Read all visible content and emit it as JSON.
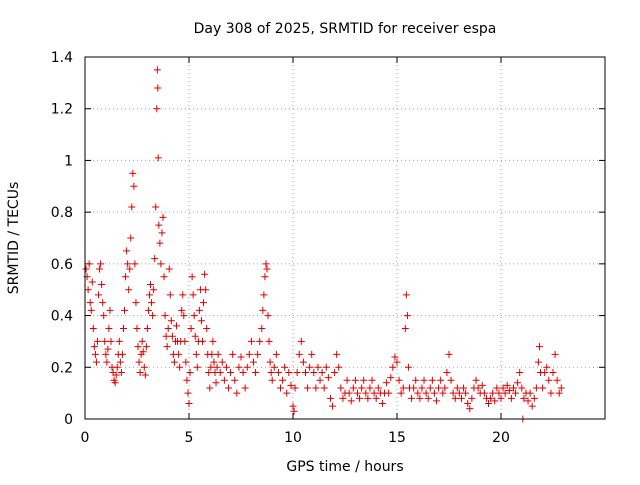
{
  "chart_data": {
    "type": "scatter",
    "title": "Day 308 of 2025, SRMTID for receiver espa",
    "xlabel": "GPS time / hours",
    "ylabel": "SRMTID / TECUs",
    "xlim": [
      0,
      25
    ],
    "ylim": [
      0,
      1.4
    ],
    "xticks": [
      0,
      5,
      10,
      15,
      20
    ],
    "yticks": [
      0,
      0.2,
      0.4,
      0.6,
      0.8,
      1.0,
      1.2,
      1.4
    ],
    "xtick_labels": [
      "0",
      "5",
      "10",
      "15",
      "20"
    ],
    "ytick_labels": [
      "0",
      "0.2",
      "0.4",
      "0.6",
      "0.8",
      "1",
      "1.2",
      "1.4"
    ],
    "grid": true,
    "marker": "+",
    "color": "#e00000",
    "series": [
      {
        "name": "SRMTID",
        "points": [
          [
            0.05,
            0.58
          ],
          [
            0.1,
            0.55
          ],
          [
            0.15,
            0.5
          ],
          [
            0.2,
            0.6
          ],
          [
            0.25,
            0.45
          ],
          [
            0.3,
            0.42
          ],
          [
            0.35,
            0.53
          ],
          [
            0.4,
            0.35
          ],
          [
            0.45,
            0.28
          ],
          [
            0.5,
            0.25
          ],
          [
            0.55,
            0.22
          ],
          [
            0.6,
            0.3
          ],
          [
            0.65,
            0.48
          ],
          [
            0.7,
            0.58
          ],
          [
            0.75,
            0.6
          ],
          [
            0.8,
            0.52
          ],
          [
            0.85,
            0.45
          ],
          [
            0.9,
            0.4
          ],
          [
            0.95,
            0.3
          ],
          [
            1.0,
            0.25
          ],
          [
            1.05,
            0.22
          ],
          [
            1.1,
            0.27
          ],
          [
            1.15,
            0.35
          ],
          [
            1.2,
            0.42
          ],
          [
            1.25,
            0.3
          ],
          [
            1.3,
            0.2
          ],
          [
            1.35,
            0.18
          ],
          [
            1.4,
            0.15
          ],
          [
            1.45,
            0.14
          ],
          [
            1.5,
            0.17
          ],
          [
            1.55,
            0.2
          ],
          [
            1.6,
            0.25
          ],
          [
            1.65,
            0.3
          ],
          [
            1.7,
            0.22
          ],
          [
            1.75,
            0.18
          ],
          [
            1.8,
            0.25
          ],
          [
            1.85,
            0.35
          ],
          [
            1.9,
            0.42
          ],
          [
            1.95,
            0.55
          ],
          [
            2.0,
            0.65
          ],
          [
            2.05,
            0.6
          ],
          [
            2.1,
            0.5
          ],
          [
            2.15,
            0.58
          ],
          [
            2.2,
            0.7
          ],
          [
            2.25,
            0.82
          ],
          [
            2.3,
            0.95
          ],
          [
            2.35,
            0.9
          ],
          [
            2.4,
            0.6
          ],
          [
            2.45,
            0.45
          ],
          [
            2.5,
            0.35
          ],
          [
            2.55,
            0.28
          ],
          [
            2.6,
            0.22
          ],
          [
            2.65,
            0.18
          ],
          [
            2.7,
            0.25
          ],
          [
            2.75,
            0.3
          ],
          [
            2.8,
            0.26
          ],
          [
            2.85,
            0.2
          ],
          [
            2.9,
            0.17
          ],
          [
            2.95,
            0.28
          ],
          [
            3.0,
            0.35
          ],
          [
            3.05,
            0.42
          ],
          [
            3.1,
            0.48
          ],
          [
            3.15,
            0.52
          ],
          [
            3.2,
            0.45
          ],
          [
            3.25,
            0.4
          ],
          [
            3.3,
            0.5
          ],
          [
            3.35,
            0.62
          ],
          [
            3.4,
            0.82
          ],
          [
            3.45,
            1.2
          ],
          [
            3.48,
            1.35
          ],
          [
            3.5,
            1.28
          ],
          [
            3.52,
            1.01
          ],
          [
            3.55,
            0.75
          ],
          [
            3.6,
            0.68
          ],
          [
            3.65,
            0.6
          ],
          [
            3.7,
            0.72
          ],
          [
            3.75,
            0.78
          ],
          [
            3.8,
            0.55
          ],
          [
            3.85,
            0.4
          ],
          [
            3.9,
            0.32
          ],
          [
            3.95,
            0.28
          ],
          [
            4.0,
            0.35
          ],
          [
            4.05,
            0.58
          ],
          [
            4.1,
            0.48
          ],
          [
            4.15,
            0.38
          ],
          [
            4.2,
            0.32
          ],
          [
            4.25,
            0.25
          ],
          [
            4.3,
            0.22
          ],
          [
            4.35,
            0.3
          ],
          [
            4.4,
            0.36
          ],
          [
            4.45,
            0.3
          ],
          [
            4.5,
            0.25
          ],
          [
            4.55,
            0.2
          ],
          [
            4.6,
            0.3
          ],
          [
            4.65,
            0.42
          ],
          [
            4.7,
            0.48
          ],
          [
            4.75,
            0.4
          ],
          [
            4.8,
            0.3
          ],
          [
            4.85,
            0.22
          ],
          [
            4.9,
            0.15
          ],
          [
            4.95,
            0.1
          ],
          [
            5.0,
            0.06
          ],
          [
            5.05,
            0.18
          ],
          [
            5.1,
            0.35
          ],
          [
            5.15,
            0.55
          ],
          [
            5.2,
            0.48
          ],
          [
            5.25,
            0.4
          ],
          [
            5.3,
            0.32
          ],
          [
            5.35,
            0.25
          ],
          [
            5.4,
            0.2
          ],
          [
            5.45,
            0.3
          ],
          [
            5.5,
            0.42
          ],
          [
            5.55,
            0.5
          ],
          [
            5.6,
            0.38
          ],
          [
            5.65,
            0.3
          ],
          [
            5.7,
            0.45
          ],
          [
            5.75,
            0.56
          ],
          [
            5.8,
            0.5
          ],
          [
            5.85,
            0.35
          ],
          [
            5.9,
            0.25
          ],
          [
            5.95,
            0.18
          ],
          [
            6.0,
            0.12
          ],
          [
            6.05,
            0.2
          ],
          [
            6.1,
            0.25
          ],
          [
            6.15,
            0.3
          ],
          [
            6.2,
            0.22
          ],
          [
            6.25,
            0.18
          ],
          [
            6.3,
            0.14
          ],
          [
            6.35,
            0.2
          ],
          [
            6.4,
            0.25
          ],
          [
            6.5,
            0.18
          ],
          [
            6.6,
            0.22
          ],
          [
            6.7,
            0.15
          ],
          [
            6.8,
            0.2
          ],
          [
            6.9,
            0.12
          ],
          [
            7.0,
            0.18
          ],
          [
            7.1,
            0.25
          ],
          [
            7.2,
            0.15
          ],
          [
            7.3,
            0.1
          ],
          [
            7.4,
            0.2
          ],
          [
            7.5,
            0.24
          ],
          [
            7.6,
            0.18
          ],
          [
            7.7,
            0.12
          ],
          [
            7.8,
            0.2
          ],
          [
            7.9,
            0.25
          ],
          [
            8.0,
            0.3
          ],
          [
            8.1,
            0.22
          ],
          [
            8.2,
            0.18
          ],
          [
            8.3,
            0.25
          ],
          [
            8.4,
            0.3
          ],
          [
            8.5,
            0.35
          ],
          [
            8.55,
            0.42
          ],
          [
            8.6,
            0.48
          ],
          [
            8.65,
            0.55
          ],
          [
            8.7,
            0.6
          ],
          [
            8.75,
            0.58
          ],
          [
            8.8,
            0.4
          ],
          [
            8.85,
            0.3
          ],
          [
            8.9,
            0.22
          ],
          [
            8.95,
            0.18
          ],
          [
            9.0,
            0.15
          ],
          [
            9.1,
            0.2
          ],
          [
            9.2,
            0.25
          ],
          [
            9.3,
            0.18
          ],
          [
            9.4,
            0.12
          ],
          [
            9.5,
            0.15
          ],
          [
            9.6,
            0.2
          ],
          [
            9.7,
            0.1
          ],
          [
            9.8,
            0.18
          ],
          [
            9.9,
            0.13
          ],
          [
            10.0,
            0.05
          ],
          [
            10.05,
            0.03
          ],
          [
            10.1,
            0.12
          ],
          [
            10.2,
            0.18
          ],
          [
            10.3,
            0.25
          ],
          [
            10.4,
            0.3
          ],
          [
            10.5,
            0.22
          ],
          [
            10.6,
            0.18
          ],
          [
            10.7,
            0.12
          ],
          [
            10.8,
            0.2
          ],
          [
            10.9,
            0.25
          ],
          [
            11.0,
            0.18
          ],
          [
            11.1,
            0.12
          ],
          [
            11.2,
            0.2
          ],
          [
            11.3,
            0.15
          ],
          [
            11.4,
            0.18
          ],
          [
            11.5,
            0.12
          ],
          [
            11.6,
            0.2
          ],
          [
            11.7,
            0.16
          ],
          [
            11.8,
            0.08
          ],
          [
            11.9,
            0.05
          ],
          [
            12.0,
            0.18
          ],
          [
            12.1,
            0.25
          ],
          [
            12.2,
            0.2
          ],
          [
            12.3,
            0.12
          ],
          [
            12.4,
            0.08
          ],
          [
            12.5,
            0.1
          ],
          [
            12.6,
            0.15
          ],
          [
            12.7,
            0.1
          ],
          [
            12.8,
            0.07
          ],
          [
            12.9,
            0.12
          ],
          [
            13.0,
            0.15
          ],
          [
            13.1,
            0.1
          ],
          [
            13.2,
            0.08
          ],
          [
            13.3,
            0.12
          ],
          [
            13.4,
            0.15
          ],
          [
            13.5,
            0.1
          ],
          [
            13.6,
            0.08
          ],
          [
            13.7,
            0.12
          ],
          [
            13.8,
            0.15
          ],
          [
            13.9,
            0.1
          ],
          [
            14.0,
            0.08
          ],
          [
            14.1,
            0.12
          ],
          [
            14.2,
            0.1
          ],
          [
            14.3,
            0.06
          ],
          [
            14.4,
            0.1
          ],
          [
            14.5,
            0.14
          ],
          [
            14.6,
            0.1
          ],
          [
            14.7,
            0.16
          ],
          [
            14.8,
            0.2
          ],
          [
            14.9,
            0.24
          ],
          [
            15.0,
            0.22
          ],
          [
            15.1,
            0.15
          ],
          [
            15.2,
            0.1
          ],
          [
            15.3,
            0.12
          ],
          [
            15.4,
            0.35
          ],
          [
            15.45,
            0.48
          ],
          [
            15.5,
            0.4
          ],
          [
            15.55,
            0.2
          ],
          [
            15.6,
            0.12
          ],
          [
            15.7,
            0.08
          ],
          [
            15.8,
            0.12
          ],
          [
            15.9,
            0.15
          ],
          [
            16.0,
            0.1
          ],
          [
            16.1,
            0.08
          ],
          [
            16.2,
            0.12
          ],
          [
            16.3,
            0.15
          ],
          [
            16.4,
            0.1
          ],
          [
            16.5,
            0.08
          ],
          [
            16.6,
            0.12
          ],
          [
            16.7,
            0.15
          ],
          [
            16.8,
            0.1
          ],
          [
            16.9,
            0.07
          ],
          [
            17.0,
            0.12
          ],
          [
            17.1,
            0.15
          ],
          [
            17.2,
            0.1
          ],
          [
            17.3,
            0.12
          ],
          [
            17.4,
            0.18
          ],
          [
            17.5,
            0.25
          ],
          [
            17.6,
            0.15
          ],
          [
            17.7,
            0.1
          ],
          [
            17.8,
            0.08
          ],
          [
            17.9,
            0.12
          ],
          [
            18.0,
            0.1
          ],
          [
            18.1,
            0.08
          ],
          [
            18.2,
            0.12
          ],
          [
            18.3,
            0.1
          ],
          [
            18.4,
            0.06
          ],
          [
            18.5,
            0.04
          ],
          [
            18.6,
            0.08
          ],
          [
            18.7,
            0.12
          ],
          [
            18.8,
            0.15
          ],
          [
            18.9,
            0.12
          ],
          [
            19.0,
            0.1
          ],
          [
            19.1,
            0.13
          ],
          [
            19.2,
            0.1
          ],
          [
            19.3,
            0.08
          ],
          [
            19.4,
            0.06
          ],
          [
            19.5,
            0.08
          ],
          [
            19.6,
            0.1
          ],
          [
            19.7,
            0.07
          ],
          [
            19.8,
            0.12
          ],
          [
            19.9,
            0.1
          ],
          [
            20.0,
            0.08
          ],
          [
            20.1,
            0.12
          ],
          [
            20.2,
            0.1
          ],
          [
            20.3,
            0.13
          ],
          [
            20.4,
            0.11
          ],
          [
            20.5,
            0.08
          ],
          [
            20.6,
            0.12
          ],
          [
            20.7,
            0.1
          ],
          [
            20.8,
            0.14
          ],
          [
            20.9,
            0.18
          ],
          [
            21.0,
            0.12
          ],
          [
            21.05,
            0.0
          ],
          [
            21.1,
            0.08
          ],
          [
            21.2,
            0.1
          ],
          [
            21.3,
            0.07
          ],
          [
            21.4,
            0.1
          ],
          [
            21.5,
            0.05
          ],
          [
            21.6,
            0.08
          ],
          [
            21.7,
            0.12
          ],
          [
            21.8,
            0.22
          ],
          [
            21.85,
            0.28
          ],
          [
            21.9,
            0.18
          ],
          [
            22.0,
            0.12
          ],
          [
            22.1,
            0.18
          ],
          [
            22.2,
            0.2
          ],
          [
            22.3,
            0.15
          ],
          [
            22.4,
            0.1
          ],
          [
            22.5,
            0.18
          ],
          [
            22.6,
            0.25
          ],
          [
            22.7,
            0.15
          ],
          [
            22.8,
            0.1
          ],
          [
            22.9,
            0.12
          ]
        ]
      }
    ]
  }
}
